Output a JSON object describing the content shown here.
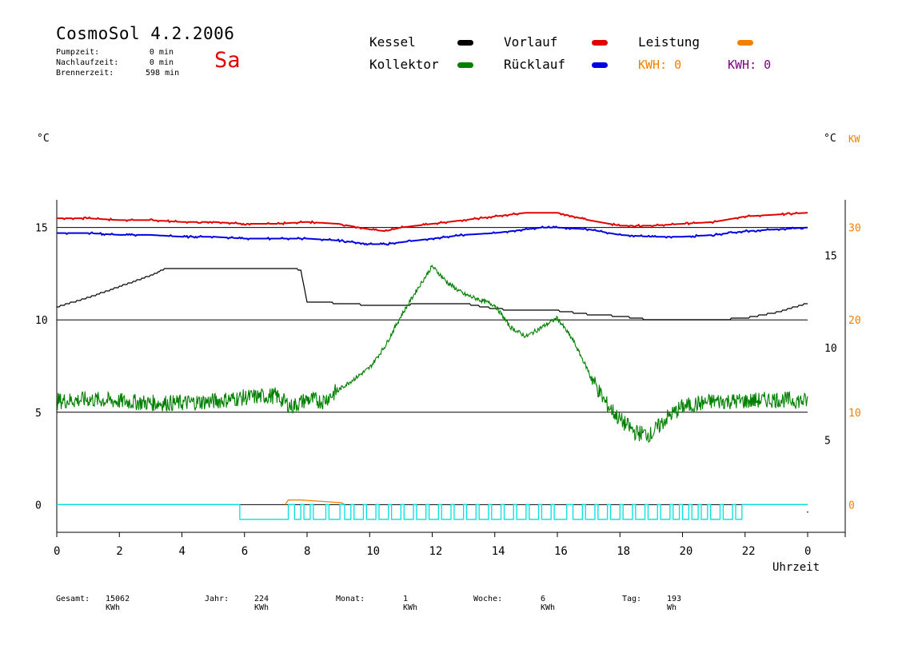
{
  "header": {
    "title": "CosmoSol 4.2.2006",
    "weekday": "Sa",
    "stats": [
      {
        "label": "Pumpzeit:",
        "value": "0 min"
      },
      {
        "label": "Nachlaufzeit:",
        "value": "0 min"
      },
      {
        "label": "Brennerzeit:",
        "value": "598 min"
      }
    ]
  },
  "legend": {
    "items": [
      {
        "label": "Kessel",
        "color": "#000000"
      },
      {
        "label": "Vorlauf",
        "color": "#e00000"
      },
      {
        "label": "Leistung",
        "color": "#f08000"
      },
      {
        "label": "Kollektor",
        "color": "#008000"
      },
      {
        "label": "Rücklauf",
        "color": "#0000e0"
      }
    ],
    "kwh": [
      {
        "label": "KWH: 0",
        "color": "#f08000"
      },
      {
        "label": "KWH: 0",
        "color": "#800080"
      }
    ]
  },
  "footer": [
    {
      "label": "Gesamt:",
      "value": "15062 KWh"
    },
    {
      "label": "Jahr:",
      "value": "224 KWh"
    },
    {
      "label": "Monat:",
      "value": "1 KWh"
    },
    {
      "label": "Woche:",
      "value": "6 KWh"
    },
    {
      "label": "Tag:",
      "value": "193 Wh"
    }
  ],
  "chart_data": {
    "type": "line",
    "xlabel": "Uhrzeit",
    "xticks": [
      "0",
      "2",
      "4",
      "6",
      "8",
      "10",
      "12",
      "14",
      "16",
      "18",
      "20",
      "22",
      "0"
    ],
    "xlim": [
      0,
      24
    ],
    "left_axis": {
      "unit": "°C",
      "ticks": [
        "0",
        "5",
        "10",
        "15"
      ],
      "ylim": [
        -1.5,
        16.5
      ]
    },
    "right_axis_inner": {
      "unit": "°C",
      "ticks": [
        "5",
        "10",
        "15"
      ],
      "ylim": [
        0,
        18
      ]
    },
    "right_axis_outer": {
      "unit": "KW",
      "ticks": [
        "0",
        "10",
        "20",
        "30"
      ],
      "ylim": [
        -3,
        33
      ],
      "color": "#f08000"
    },
    "grid_lines_y": [
      0,
      5,
      10,
      15
    ],
    "series": [
      {
        "name": "Vorlauf",
        "color": "#e00000",
        "axis": "left",
        "x": [
          0,
          1,
          2,
          3,
          4,
          5,
          6,
          7,
          8,
          9,
          10,
          10.5,
          11,
          12,
          13,
          14,
          15,
          15.5,
          16,
          17,
          18,
          19,
          20,
          21,
          22,
          23,
          24
        ],
        "y": [
          15.5,
          15.5,
          15.4,
          15.4,
          15.3,
          15.3,
          15.2,
          15.2,
          15.3,
          15.2,
          14.9,
          14.8,
          15.0,
          15.2,
          15.4,
          15.6,
          15.8,
          15.8,
          15.8,
          15.4,
          15.1,
          15.1,
          15.2,
          15.3,
          15.6,
          15.7,
          15.8
        ]
      },
      {
        "name": "Rücklauf",
        "color": "#0000e0",
        "axis": "left",
        "x": [
          0,
          1,
          2,
          3,
          4,
          5,
          6,
          7,
          8,
          9,
          10,
          10.5,
          11,
          12,
          13,
          14,
          15,
          15.5,
          16,
          17,
          18,
          19,
          20,
          21,
          22,
          23,
          24
        ],
        "y": [
          14.7,
          14.7,
          14.6,
          14.6,
          14.5,
          14.5,
          14.4,
          14.4,
          14.4,
          14.3,
          14.1,
          14.1,
          14.2,
          14.4,
          14.6,
          14.7,
          14.9,
          15.0,
          15.0,
          14.9,
          14.6,
          14.5,
          14.5,
          14.6,
          14.8,
          14.9,
          15.0
        ]
      },
      {
        "name": "Kessel",
        "color": "#000000",
        "axis": "left",
        "x": [
          0,
          1,
          2,
          3,
          3.5,
          4,
          5,
          6,
          7,
          7.5,
          7.8,
          8,
          9,
          10,
          11,
          12,
          13,
          14,
          15,
          16,
          17,
          18,
          19,
          20,
          21,
          22,
          23,
          24
        ],
        "y": [
          10.7,
          11.2,
          11.8,
          12.4,
          12.8,
          12.8,
          12.8,
          12.8,
          12.8,
          12.8,
          12.7,
          11.0,
          10.9,
          10.8,
          10.8,
          10.9,
          10.9,
          10.6,
          10.5,
          10.5,
          10.3,
          10.2,
          10.0,
          10.0,
          10.0,
          10.1,
          10.4,
          10.9
        ]
      },
      {
        "name": "Kollektor",
        "color": "#008000",
        "axis": "left",
        "x": [
          0,
          1,
          2,
          3,
          4,
          5,
          6,
          7,
          7.5,
          8,
          8.5,
          9,
          10,
          10.5,
          11,
          11.5,
          12,
          12.5,
          13,
          13.5,
          14,
          14.5,
          15,
          15.5,
          16,
          16.5,
          17,
          17.5,
          18,
          18.5,
          19,
          19.5,
          20,
          21,
          22,
          23,
          24
        ],
        "y": [
          5.6,
          5.7,
          5.6,
          5.5,
          5.5,
          5.6,
          5.8,
          5.9,
          5.3,
          5.7,
          5.6,
          6.2,
          7.4,
          8.6,
          10.2,
          11.6,
          12.9,
          12.0,
          11.4,
          11.1,
          10.8,
          9.6,
          9.1,
          9.6,
          10.1,
          8.9,
          7.2,
          5.6,
          4.6,
          3.9,
          3.8,
          4.7,
          5.3,
          5.6,
          5.6,
          5.7,
          5.6
        ]
      },
      {
        "name": "Leistung",
        "color": "#f08000",
        "axis": "right_outer",
        "x": [
          7.3,
          7.4,
          7.8,
          9.1,
          9.2
        ],
        "y": [
          0,
          0.25,
          0.25,
          0.1,
          0
        ]
      },
      {
        "name": "Pumpe",
        "color": "#00e0e0",
        "axis": "left",
        "segments_on": [
          [
            5.85,
            7.4
          ],
          [
            7.6,
            7.8
          ],
          [
            7.9,
            8.1
          ],
          [
            8.2,
            8.6
          ],
          [
            8.7,
            9.05
          ],
          [
            9.2,
            9.4
          ],
          [
            9.5,
            9.8
          ],
          [
            9.9,
            10.2
          ],
          [
            10.3,
            10.6
          ],
          [
            10.7,
            11.0
          ],
          [
            11.1,
            11.4
          ],
          [
            11.5,
            11.8
          ],
          [
            11.9,
            12.2
          ],
          [
            12.3,
            12.6
          ],
          [
            12.7,
            13.0
          ],
          [
            13.1,
            13.4
          ],
          [
            13.5,
            13.8
          ],
          [
            13.9,
            14.2
          ],
          [
            14.3,
            14.6
          ],
          [
            14.7,
            15.0
          ],
          [
            15.1,
            15.4
          ],
          [
            15.5,
            15.8
          ],
          [
            15.9,
            16.3
          ],
          [
            16.5,
            16.8
          ],
          [
            16.9,
            17.2
          ],
          [
            17.3,
            17.6
          ],
          [
            17.7,
            18.0
          ],
          [
            18.1,
            18.4
          ],
          [
            18.5,
            18.8
          ],
          [
            18.9,
            19.2
          ],
          [
            19.3,
            19.6
          ],
          [
            19.7,
            19.9
          ],
          [
            20.0,
            20.2
          ],
          [
            20.3,
            20.5
          ],
          [
            20.6,
            20.8
          ],
          [
            20.9,
            21.2
          ],
          [
            21.3,
            21.6
          ],
          [
            21.7,
            21.9
          ]
        ],
        "level_on": -0.8,
        "level_off": 0
      }
    ]
  }
}
